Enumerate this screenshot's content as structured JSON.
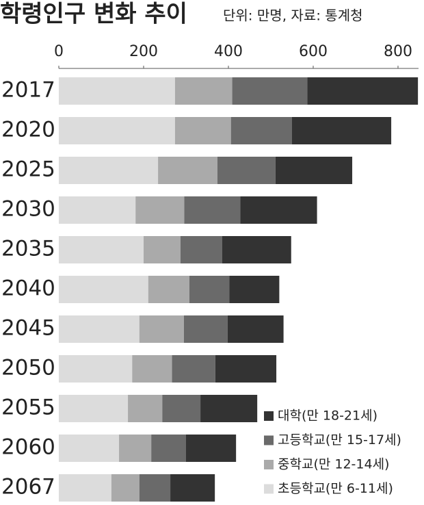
{
  "chart_data": {
    "type": "stacked-bar-horizontal",
    "title": "학령인구 변화 추이",
    "subtitle": "단위: 만명, 자료: 통계청",
    "categories": [
      "2017",
      "2020",
      "2025",
      "2030",
      "2035",
      "2040",
      "2045",
      "2050",
      "2055",
      "2060",
      "2067"
    ],
    "series": [
      {
        "name": "초등학교(만 6-11세)",
        "color": "#dcdcdc",
        "values": [
          274,
          274,
          234,
          181,
          200,
          211,
          190,
          173,
          163,
          142,
          124
        ]
      },
      {
        "name": "중학교(만 12-14세)",
        "color": "#aaaaaa",
        "values": [
          135,
          132,
          140,
          115,
          87,
          97,
          105,
          94,
          81,
          76,
          66
        ]
      },
      {
        "name": "고등학교(만 15-17세)",
        "color": "#6a6a6a",
        "values": [
          177,
          144,
          137,
          132,
          98,
          94,
          103,
          102,
          90,
          82,
          73
        ]
      },
      {
        "name": "대학(만 18-21세)",
        "color": "#333333",
        "values": [
          261,
          234,
          181,
          181,
          163,
          118,
          132,
          144,
          134,
          118,
          105
        ]
      }
    ],
    "xlim": [
      0,
      850
    ],
    "xticks": [
      0,
      200,
      400,
      600,
      800
    ],
    "legend": "lower-right"
  }
}
